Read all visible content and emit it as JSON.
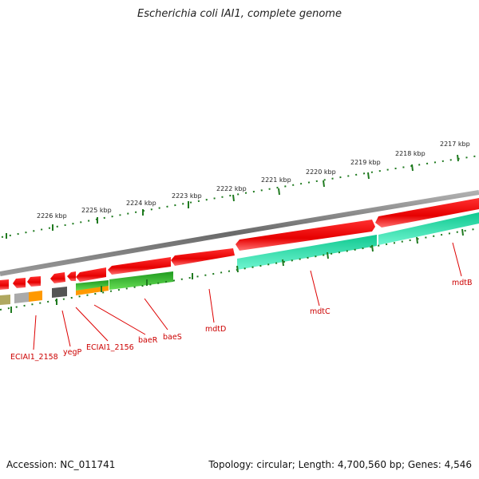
{
  "title": "Escherichia coli IAI1, complete genome",
  "footer": {
    "accession": "Accession: NC_011741",
    "summary": "Topology: circular; Length: 4,700,560 bp; Genes: 4,546"
  },
  "scale": {
    "labels": [
      "2217 kbp",
      "2218 kbp",
      "2219 kbp",
      "2220 kbp",
      "2221 kbp",
      "2222 kbp",
      "2223 kbp",
      "2224 kbp",
      "2225 kbp",
      "2226 kbp"
    ]
  },
  "genes": [
    {
      "name": "mdtB"
    },
    {
      "name": "mdtC"
    },
    {
      "name": "mdtD"
    },
    {
      "name": "baeS"
    },
    {
      "name": "baeR"
    },
    {
      "name": "ECIAI1_2156"
    },
    {
      "name": "yegP"
    },
    {
      "name": "ECIAI1_2158"
    }
  ],
  "colors": {
    "backbone": "#808080",
    "cds": "#ee0000",
    "mdt_track": "#22e8b0",
    "bae_track": "#33bb33",
    "orange": "#ff9900",
    "grey": "#555555",
    "olive": "#b0a860",
    "ticks": "#1f7a1f",
    "label": "#cc0000"
  }
}
